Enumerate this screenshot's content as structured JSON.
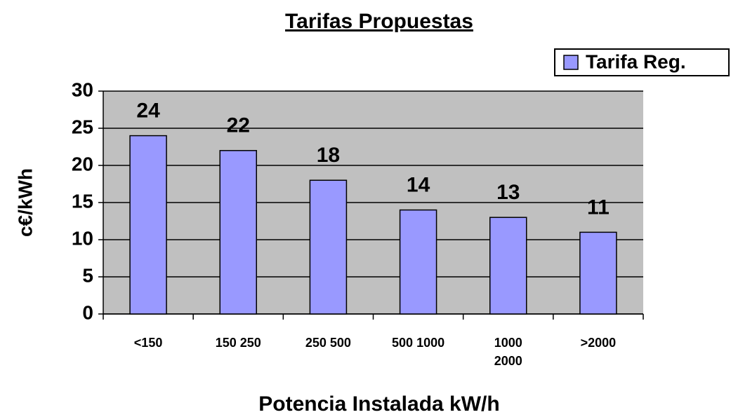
{
  "chart_data": {
    "type": "bar",
    "title": "Tarifas Propuestas",
    "categories": [
      "<150",
      "150 250",
      "250 500",
      "500 1000",
      "1000 2000",
      ">2000"
    ],
    "series": [
      {
        "name": "Tarifa Reg.",
        "color": "#9999ff",
        "values": [
          24,
          22,
          18,
          14,
          13,
          11
        ]
      }
    ],
    "ylim": [
      0,
      30
    ],
    "yticks": [
      0,
      5,
      10,
      15,
      20,
      25,
      30
    ],
    "grid": true,
    "xlabel": "Potencia Instalada kW/h",
    "ylabel": "c€/kWh",
    "legend": "top-right"
  }
}
